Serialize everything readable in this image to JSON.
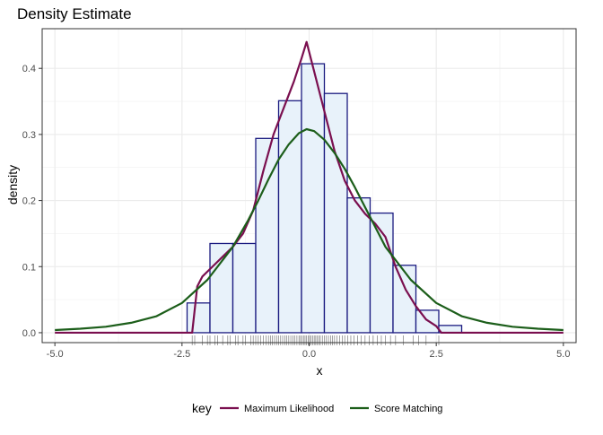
{
  "chart_data": {
    "type": "histogram",
    "title": "Density Estimate",
    "xlabel": "x",
    "ylabel": "density",
    "xlim": [
      -5.25,
      5.25
    ],
    "ylim": [
      -0.015,
      0.46
    ],
    "x_ticks": [
      -5.0,
      -2.5,
      0.0,
      2.5,
      5.0
    ],
    "x_tick_labels": [
      "-5.0",
      "-2.5",
      "0.0",
      "2.5",
      "5.0"
    ],
    "y_ticks": [
      0.0,
      0.1,
      0.2,
      0.3,
      0.4
    ],
    "y_tick_labels": [
      "0.0",
      "0.1",
      "0.2",
      "0.3",
      "0.4"
    ],
    "grid": true,
    "histogram": {
      "fill": "#e8f2fa",
      "stroke": "#1a1a80",
      "bins": [
        {
          "x0": -2.4,
          "x1": -1.95,
          "density": 0.045
        },
        {
          "x0": -1.95,
          "x1": -1.5,
          "density": 0.135
        },
        {
          "x0": -1.5,
          "x1": -1.05,
          "density": 0.135
        },
        {
          "x0": -1.05,
          "x1": -0.6,
          "density": 0.294
        },
        {
          "x0": -0.6,
          "x1": -0.15,
          "density": 0.351
        },
        {
          "x0": -0.15,
          "x1": 0.3,
          "density": 0.407
        },
        {
          "x0": 0.3,
          "x1": 0.75,
          "density": 0.362
        },
        {
          "x0": 0.75,
          "x1": 1.2,
          "density": 0.204
        },
        {
          "x0": 1.2,
          "x1": 1.65,
          "density": 0.181
        },
        {
          "x0": 1.65,
          "x1": 2.1,
          "density": 0.102
        },
        {
          "x0": 2.1,
          "x1": 2.55,
          "density": 0.034
        },
        {
          "x0": 2.55,
          "x1": 3.0,
          "density": 0.011
        }
      ]
    },
    "series": [
      {
        "name": "Maximum Likelihood",
        "color": "#7a0f4f",
        "x": [
          -5.0,
          -2.3,
          -2.2,
          -2.1,
          -1.9,
          -1.7,
          -1.5,
          -1.3,
          -1.1,
          -0.9,
          -0.7,
          -0.5,
          -0.3,
          -0.15,
          -0.05,
          0.1,
          0.3,
          0.5,
          0.7,
          0.9,
          1.1,
          1.3,
          1.5,
          1.7,
          1.9,
          2.1,
          2.3,
          2.5,
          2.6,
          5.0
        ],
        "y": [
          0.0,
          0.0,
          0.07,
          0.085,
          0.1,
          0.115,
          0.13,
          0.15,
          0.185,
          0.245,
          0.3,
          0.34,
          0.38,
          0.415,
          0.44,
          0.395,
          0.335,
          0.275,
          0.23,
          0.2,
          0.18,
          0.165,
          0.145,
          0.1,
          0.065,
          0.04,
          0.02,
          0.01,
          0.0,
          0.0
        ]
      },
      {
        "name": "Score Matching",
        "color": "#1c5e1a",
        "x": [
          -5.0,
          -4.5,
          -4.0,
          -3.5,
          -3.0,
          -2.5,
          -2.0,
          -1.5,
          -1.2,
          -1.0,
          -0.8,
          -0.6,
          -0.4,
          -0.2,
          -0.05,
          0.1,
          0.3,
          0.5,
          0.7,
          0.9,
          1.1,
          1.3,
          1.5,
          2.0,
          2.5,
          3.0,
          3.5,
          4.0,
          4.5,
          5.0
        ],
        "y": [
          0.004,
          0.006,
          0.009,
          0.015,
          0.025,
          0.045,
          0.08,
          0.13,
          0.17,
          0.2,
          0.232,
          0.262,
          0.285,
          0.302,
          0.308,
          0.305,
          0.292,
          0.272,
          0.248,
          0.22,
          0.19,
          0.16,
          0.13,
          0.08,
          0.045,
          0.025,
          0.015,
          0.009,
          0.006,
          0.004
        ]
      }
    ],
    "rug": {
      "color": "#333333",
      "values": [
        -2.3,
        -2.25,
        -2.1,
        -2.0,
        -1.95,
        -1.85,
        -1.8,
        -1.7,
        -1.6,
        -1.55,
        -1.45,
        -1.4,
        -1.3,
        -1.25,
        -1.15,
        -1.1,
        -1.05,
        -1.0,
        -0.95,
        -0.9,
        -0.85,
        -0.8,
        -0.76,
        -0.72,
        -0.68,
        -0.64,
        -0.6,
        -0.56,
        -0.52,
        -0.48,
        -0.44,
        -0.4,
        -0.36,
        -0.32,
        -0.28,
        -0.24,
        -0.2,
        -0.17,
        -0.14,
        -0.11,
        -0.08,
        -0.05,
        -0.02,
        0.01,
        0.04,
        0.07,
        0.1,
        0.13,
        0.16,
        0.19,
        0.22,
        0.26,
        0.3,
        0.34,
        0.38,
        0.42,
        0.46,
        0.5,
        0.55,
        0.6,
        0.65,
        0.7,
        0.76,
        0.82,
        0.88,
        0.95,
        1.02,
        1.1,
        1.18,
        1.26,
        1.34,
        1.42,
        1.5,
        1.6,
        1.7,
        1.85,
        2.05,
        2.15,
        2.3,
        2.55
      ]
    },
    "legend": {
      "position": "bottom",
      "title": "key",
      "entries": [
        "Maximum Likelihood",
        "Score Matching"
      ]
    }
  }
}
